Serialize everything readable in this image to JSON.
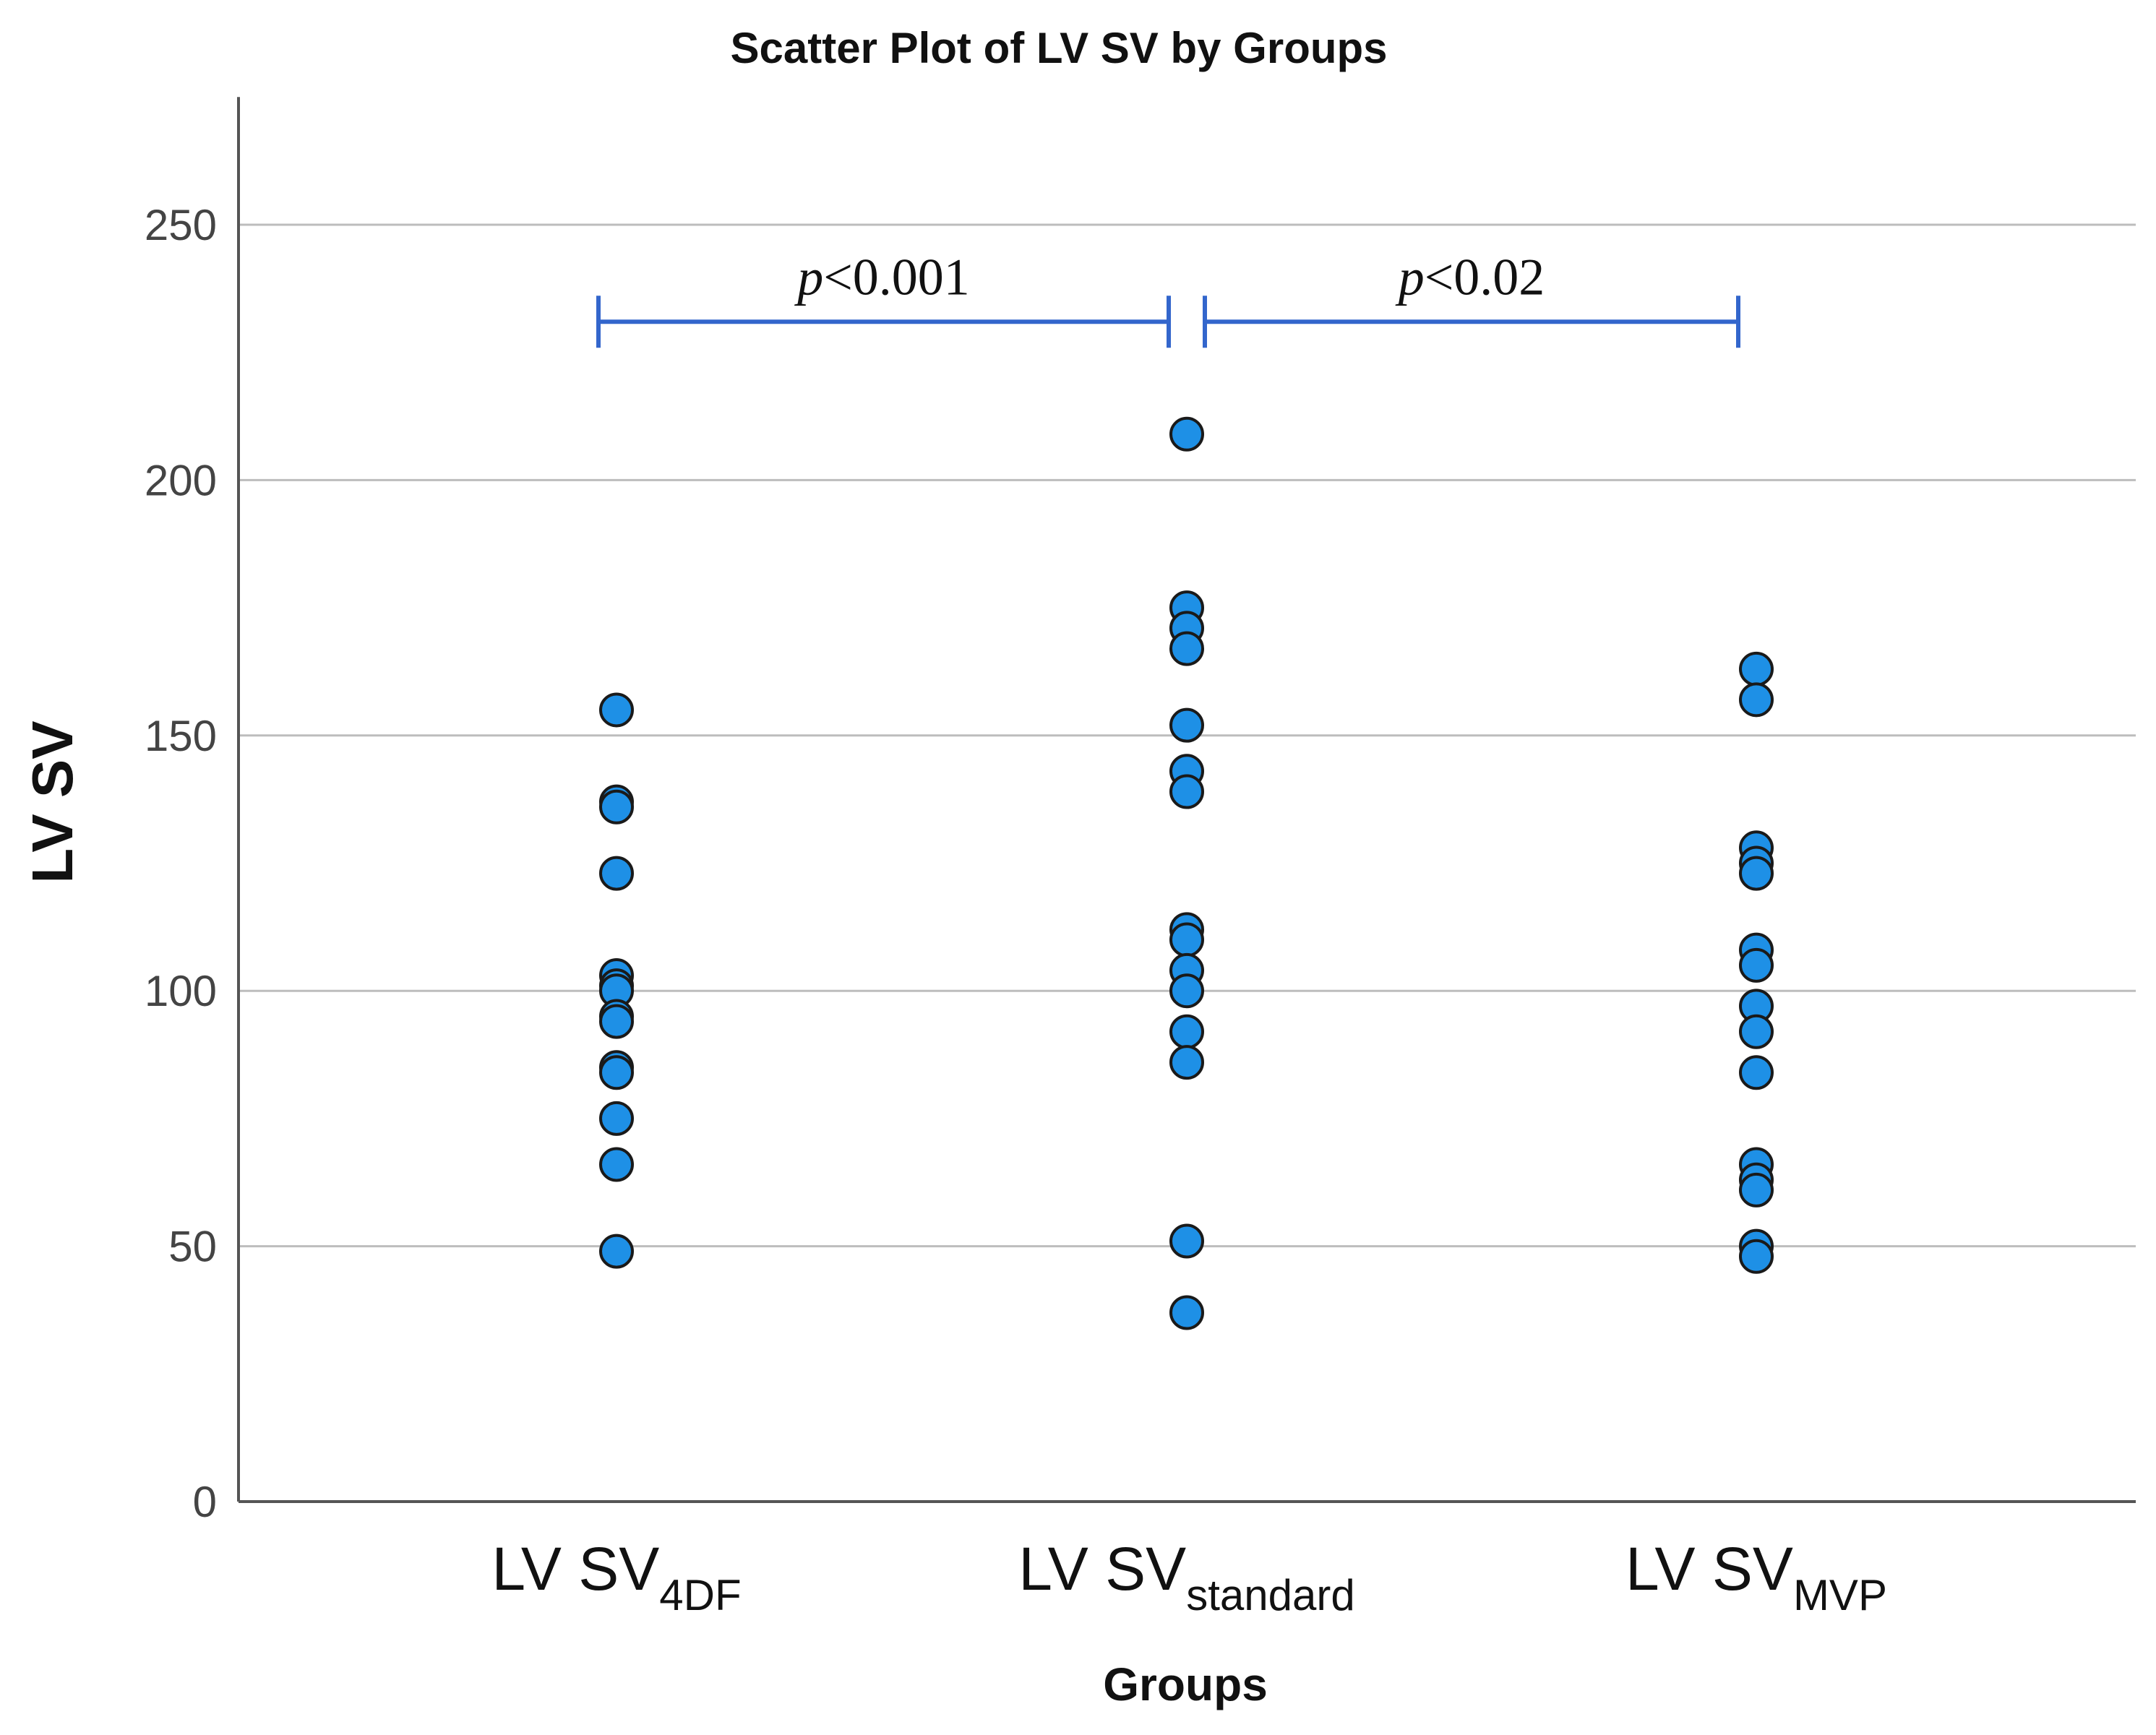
{
  "chart_data": {
    "type": "scatter",
    "title": "Scatter Plot of LV SV by Groups",
    "xlabel": "Groups",
    "ylabel": "LV SV",
    "ylim": [
      0,
      275
    ],
    "yticks": [
      0,
      50,
      100,
      150,
      200,
      250
    ],
    "grid": true,
    "categories": [
      {
        "main": "LV SV",
        "sub": "4DF"
      },
      {
        "main": "LV SV",
        "sub": "standard"
      },
      {
        "main": "LV SV",
        "sub": "MVP"
      }
    ],
    "series": [
      {
        "name": "LV SV4DF",
        "values": [
          155,
          137,
          136,
          123,
          103,
          101,
          100,
          95,
          94,
          85,
          84,
          75,
          66,
          49
        ]
      },
      {
        "name": "LV SVstandard",
        "values": [
          209,
          175,
          171,
          167,
          152,
          143,
          139,
          112,
          110,
          104,
          100,
          92,
          86,
          51,
          37
        ]
      },
      {
        "name": "LV SVMVP",
        "values": [
          163,
          157,
          128,
          125,
          123,
          108,
          105,
          97,
          92,
          84,
          66,
          63,
          61,
          50,
          48
        ]
      }
    ],
    "annotations": [
      {
        "from": 0,
        "to": 1,
        "label_italic": "p",
        "label_rest": "<0.001",
        "y": 231
      },
      {
        "from": 1,
        "to": 2,
        "label_italic": "p",
        "label_rest": "<0.02",
        "y": 231
      }
    ],
    "colors": {
      "point_fill": "#1E90E6",
      "point_stroke": "#1a1a1a",
      "bracket": "#3366CC",
      "grid": "#BDBDBD",
      "axis": "#555555"
    }
  }
}
